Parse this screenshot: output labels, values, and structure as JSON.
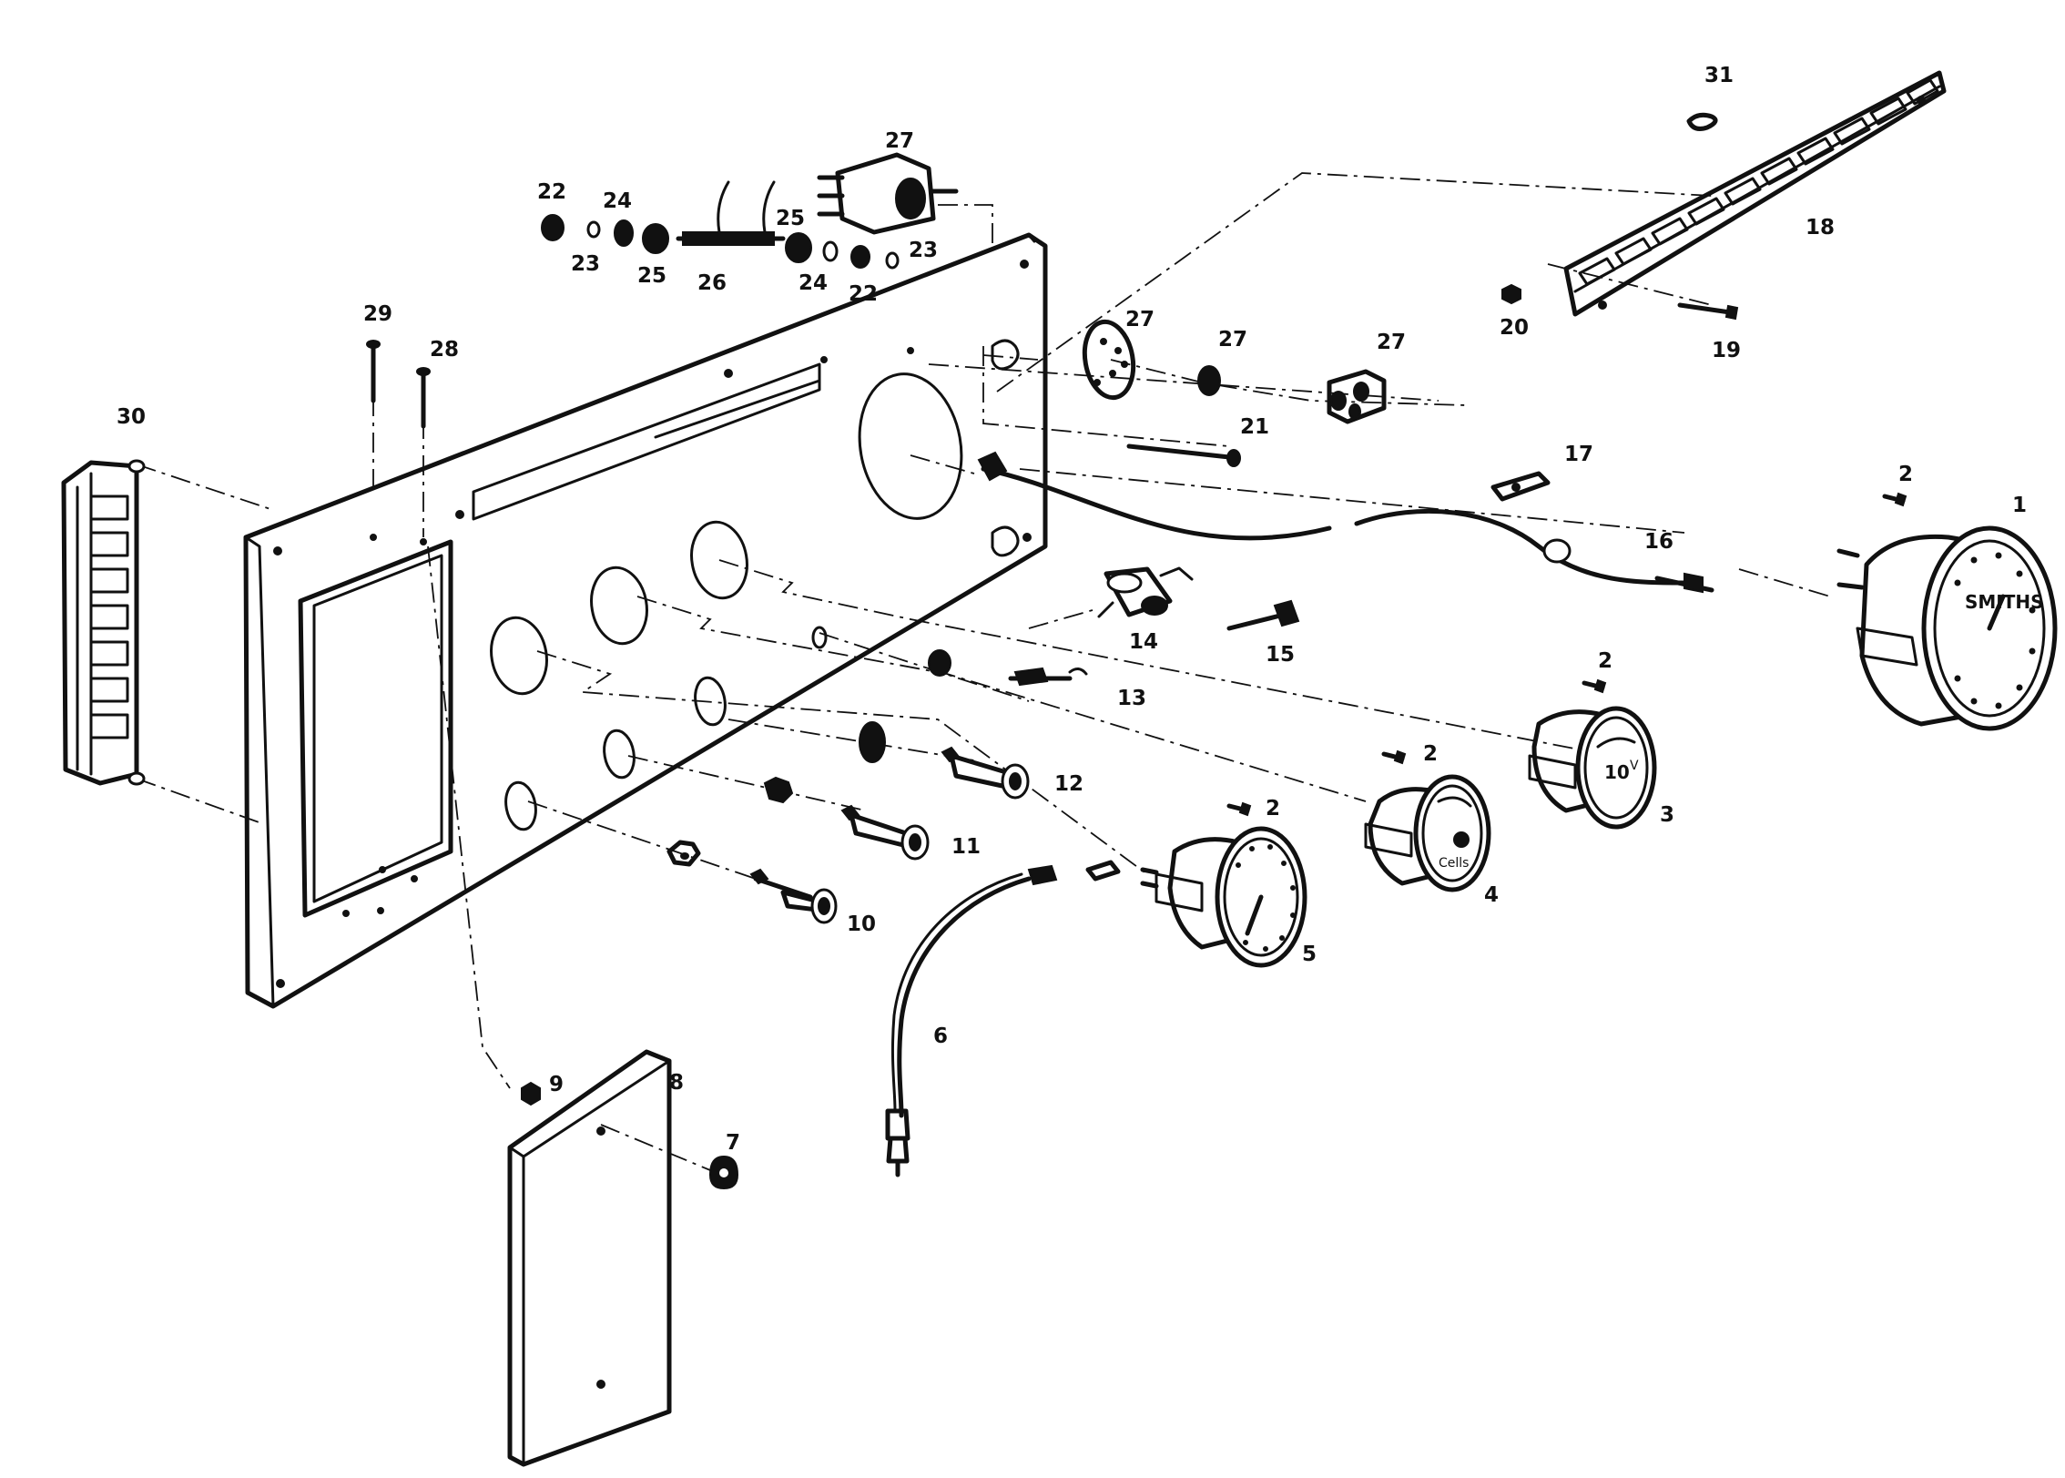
{
  "diagram": {
    "callouts": [
      {
        "id": "c1",
        "text": "1"
      },
      {
        "id": "c2a",
        "text": "2"
      },
      {
        "id": "c2b",
        "text": "2"
      },
      {
        "id": "c2c",
        "text": "2"
      },
      {
        "id": "c2d",
        "text": "2"
      },
      {
        "id": "c3",
        "text": "3"
      },
      {
        "id": "c4",
        "text": "4"
      },
      {
        "id": "c5",
        "text": "5"
      },
      {
        "id": "c6",
        "text": "6"
      },
      {
        "id": "c7",
        "text": "7"
      },
      {
        "id": "c8",
        "text": "8"
      },
      {
        "id": "c9",
        "text": "9"
      },
      {
        "id": "c10",
        "text": "10"
      },
      {
        "id": "c11",
        "text": "11"
      },
      {
        "id": "c12",
        "text": "12"
      },
      {
        "id": "c13",
        "text": "13"
      },
      {
        "id": "c14",
        "text": "14"
      },
      {
        "id": "c15",
        "text": "15"
      },
      {
        "id": "c16",
        "text": "16"
      },
      {
        "id": "c17",
        "text": "17"
      },
      {
        "id": "c18",
        "text": "18"
      },
      {
        "id": "c19",
        "text": "19"
      },
      {
        "id": "c20",
        "text": "20"
      },
      {
        "id": "c21",
        "text": "21"
      },
      {
        "id": "c22a",
        "text": "22"
      },
      {
        "id": "c22b",
        "text": "22"
      },
      {
        "id": "c23a",
        "text": "23"
      },
      {
        "id": "c23b",
        "text": "23"
      },
      {
        "id": "c24a",
        "text": "24"
      },
      {
        "id": "c24b",
        "text": "24"
      },
      {
        "id": "c25a",
        "text": "25"
      },
      {
        "id": "c25b",
        "text": "25"
      },
      {
        "id": "c26",
        "text": "26"
      },
      {
        "id": "c27a",
        "text": "27"
      },
      {
        "id": "c27b",
        "text": "27"
      },
      {
        "id": "c27c",
        "text": "27"
      },
      {
        "id": "c27d",
        "text": "27"
      },
      {
        "id": "c28",
        "text": "28"
      },
      {
        "id": "c29",
        "text": "29"
      },
      {
        "id": "c30",
        "text": "30"
      },
      {
        "id": "c31",
        "text": "31"
      }
    ],
    "gauge_faces": {
      "speedometer_brand": "SMITHS",
      "volt_gauge_value": "10",
      "volt_gauge_unit": "V",
      "volt_gauge_label": "Cells"
    }
  }
}
